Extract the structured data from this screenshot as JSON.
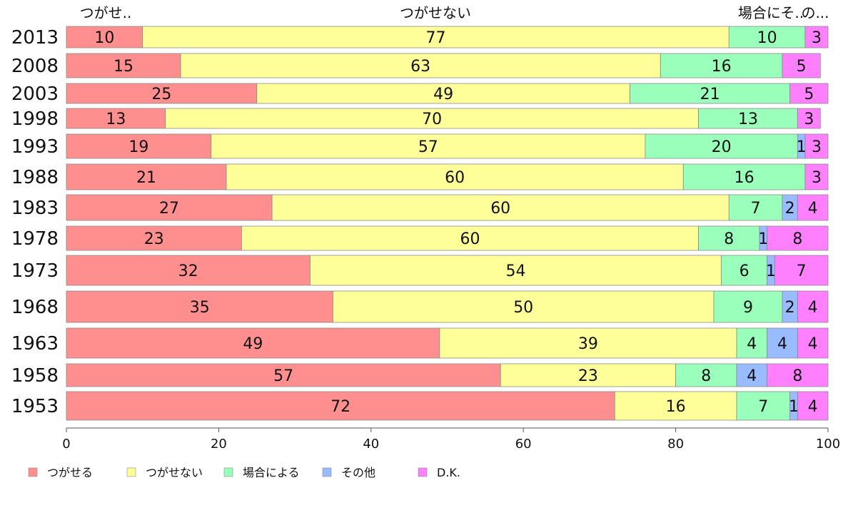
{
  "chart_data": {
    "type": "bar",
    "orientation": "horizontal",
    "stacked": true,
    "categories": [
      "2013",
      "2008",
      "2003",
      "1998",
      "1993",
      "1988",
      "1983",
      "1978",
      "1973",
      "1968",
      "1963",
      "1958",
      "1953"
    ],
    "series": [
      {
        "name": "つがせる",
        "color": "#ff8f8f",
        "values": [
          10,
          15,
          25,
          13,
          19,
          21,
          27,
          23,
          32,
          35,
          49,
          57,
          72
        ]
      },
      {
        "name": "つがせない",
        "color": "#ffff99",
        "values": [
          77,
          63,
          49,
          70,
          57,
          60,
          60,
          60,
          54,
          50,
          39,
          23,
          16
        ]
      },
      {
        "name": "場合による",
        "color": "#99ffbb",
        "values": [
          10,
          16,
          21,
          13,
          20,
          16,
          7,
          8,
          6,
          9,
          4,
          8,
          7
        ]
      },
      {
        "name": "その他",
        "color": "#99bbff",
        "values": [
          null,
          null,
          null,
          null,
          1,
          null,
          2,
          1,
          1,
          2,
          4,
          4,
          1
        ]
      },
      {
        "name": "D.K.",
        "color": "#ff80ff",
        "values": [
          3,
          5,
          5,
          3,
          3,
          3,
          4,
          8,
          7,
          4,
          4,
          8,
          4
        ]
      }
    ],
    "top_labels": [
      "つがせ..",
      "つがせない",
      "場合にそ..",
      "の..."
    ],
    "xlim": [
      0,
      100
    ],
    "xticks": [
      "0",
      "20",
      "40",
      "60",
      "80",
      "100"
    ],
    "grid": false,
    "legend_position": "bottom"
  }
}
